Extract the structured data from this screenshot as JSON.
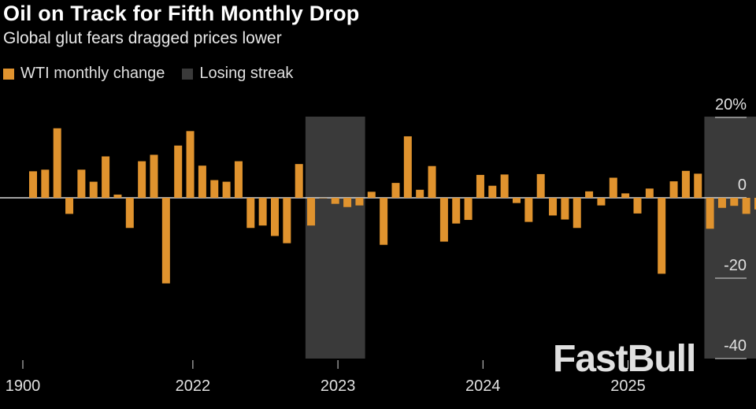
{
  "header": {
    "title": "Oil on Track for Fifth Monthly Drop",
    "subtitle": "Global glut fears dragged prices lower"
  },
  "legend": {
    "wti_label": "WTI monthly change",
    "streak_label": "Losing streak"
  },
  "colors": {
    "bar": "#e0932e",
    "streak": "#3a3a3a",
    "axis": "#d8d8d8",
    "background": "#000000"
  },
  "watermark": "FastBull",
  "chart_data": {
    "type": "bar",
    "title": "Oil on Track for Fifth Monthly Drop",
    "subtitle": "Global glut fears dragged prices lower",
    "ylabel": "",
    "xlabel": "",
    "ylim": [
      -40,
      20
    ],
    "y_ticks": [
      "20%",
      "0",
      "-20",
      "-40"
    ],
    "y_tick_values": [
      20,
      0,
      -20,
      -40
    ],
    "x_tick_labels": [
      "1900",
      "2022",
      "2023",
      "2024",
      "2025"
    ],
    "x_tick_bar_index": [
      0,
      14,
      26,
      38,
      50
    ],
    "series": [
      {
        "name": "WTI monthly change",
        "values": [
          6.6,
          7.0,
          17.3,
          -4.0,
          7.0,
          4.0,
          10.3,
          0.8,
          -7.5,
          9.1,
          10.7,
          -21.3,
          13.0,
          16.6,
          8.0,
          4.4,
          4.0,
          9.1,
          -7.5,
          -6.9,
          -9.5,
          -11.3,
          8.4,
          -6.9,
          0.0,
          -1.5,
          -2.3,
          -1.9,
          1.5,
          -11.7,
          3.7,
          15.3,
          2.0,
          7.9,
          -10.9,
          -6.4,
          -5.5,
          5.7,
          3.0,
          5.8,
          -1.3,
          -6.0,
          5.9,
          -4.4,
          -5.4,
          -7.5,
          1.6,
          -1.9,
          5.0,
          1.1,
          -3.9,
          2.3,
          -18.9,
          4.1,
          6.7,
          6.0,
          -7.7,
          -2.5,
          -2.0,
          -4.0,
          -2.9
        ]
      }
    ],
    "losing_streaks": [
      {
        "start_index": 23,
        "end_index": 27
      },
      {
        "start_index": 56,
        "end_index": 60
      }
    ]
  }
}
